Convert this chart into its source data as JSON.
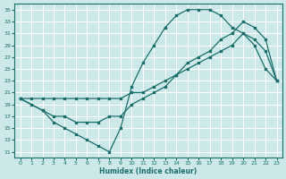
{
  "xlabel": "Humidex (Indice chaleur)",
  "ylabel": "",
  "bg_color": "#cce8e8",
  "line_color": "#1a6e6a",
  "grid_color": "#ffffff",
  "xlim": [
    -0.5,
    23.5
  ],
  "ylim": [
    10,
    36
  ],
  "xticks": [
    0,
    1,
    2,
    3,
    4,
    5,
    6,
    7,
    8,
    9,
    10,
    11,
    12,
    13,
    14,
    15,
    16,
    17,
    18,
    19,
    20,
    21,
    22,
    23
  ],
  "yticks": [
    11,
    13,
    15,
    17,
    19,
    21,
    23,
    25,
    27,
    29,
    31,
    33,
    35
  ],
  "line1_x": [
    0,
    1,
    2,
    3,
    4,
    5,
    6,
    7,
    8,
    9,
    10,
    11,
    12,
    13,
    14,
    15,
    16,
    17,
    18,
    19,
    20,
    21,
    22,
    23
  ],
  "line1_y": [
    20,
    19,
    18,
    16,
    15,
    14,
    13,
    12,
    11,
    15,
    22,
    26,
    29,
    32,
    34,
    35,
    35,
    35,
    34,
    32,
    31,
    29,
    25,
    23
  ],
  "line2_x": [
    0,
    2,
    3,
    4,
    5,
    6,
    7,
    8,
    9,
    10,
    11,
    12,
    13,
    14,
    15,
    16,
    17,
    18,
    19,
    20,
    21,
    22,
    23
  ],
  "line2_y": [
    20,
    18,
    17,
    17,
    16,
    16,
    16,
    17,
    17,
    19,
    20,
    21,
    22,
    24,
    26,
    27,
    28,
    30,
    31,
    33,
    32,
    30,
    23
  ],
  "line3_x": [
    0,
    1,
    2,
    3,
    4,
    5,
    6,
    7,
    8,
    9,
    10,
    11,
    12,
    13,
    14,
    15,
    16,
    17,
    18,
    19,
    20,
    21,
    22,
    23
  ],
  "line3_y": [
    20,
    20,
    20,
    20,
    20,
    20,
    20,
    20,
    20,
    20,
    21,
    21,
    22,
    23,
    24,
    25,
    26,
    27,
    28,
    29,
    31,
    30,
    28,
    23
  ]
}
